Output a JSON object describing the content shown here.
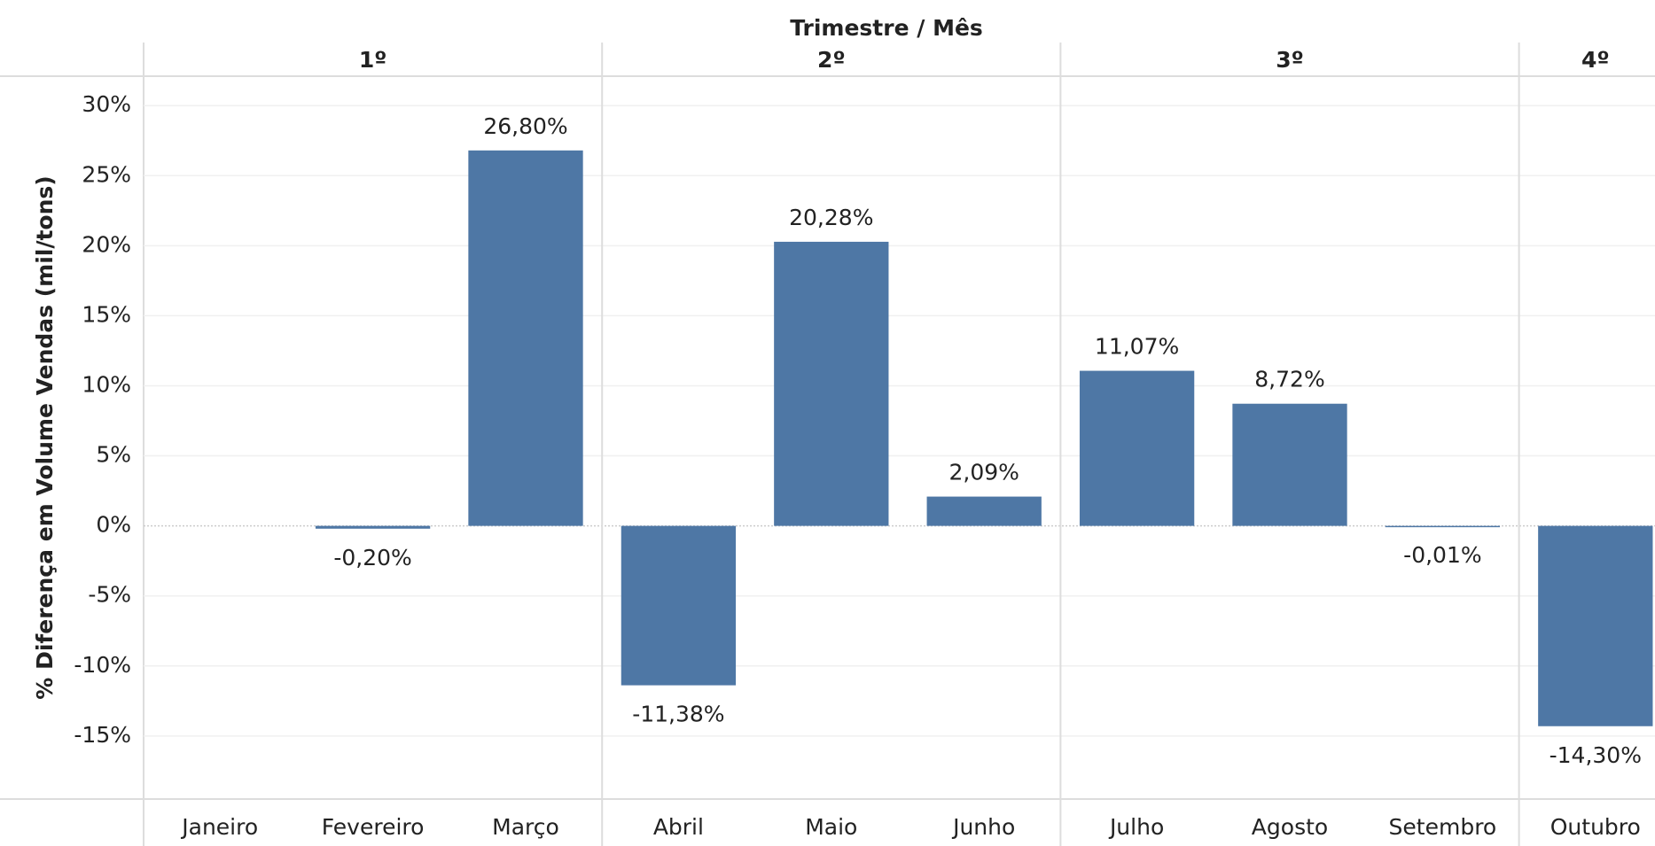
{
  "chart_data": {
    "type": "bar",
    "title": "Trimestre / Mês",
    "ylabel": "% Diferença em Volume Vendas (mil/tons)",
    "groups": [
      {
        "label": "1º",
        "span": 3
      },
      {
        "label": "2º",
        "span": 3
      },
      {
        "label": "3º",
        "span": 3
      },
      {
        "label": "4º",
        "span": 1
      }
    ],
    "categories": [
      "Janeiro",
      "Fevereiro",
      "Março",
      "Abril",
      "Maio",
      "Junho",
      "Julho",
      "Agosto",
      "Setembro",
      "Outubro"
    ],
    "values": [
      null,
      -0.2,
      26.8,
      -11.38,
      20.28,
      2.09,
      11.07,
      8.72,
      -0.01,
      -14.3
    ],
    "value_labels": [
      null,
      "-0,20%",
      "26,80%",
      "-11,38%",
      "20,28%",
      "2,09%",
      "11,07%",
      "8,72%",
      "-0,01%",
      "-14,30%"
    ],
    "color": "#4e77a5",
    "ylim": [
      -19.5,
      32.1
    ],
    "yticks": [
      {
        "value": -15,
        "label": "-15%"
      },
      {
        "value": -10,
        "label": "-10%"
      },
      {
        "value": -5,
        "label": "-5%"
      },
      {
        "value": 0,
        "label": "0%"
      },
      {
        "value": 5,
        "label": "5%"
      },
      {
        "value": 10,
        "label": "10%"
      },
      {
        "value": 15,
        "label": "15%"
      },
      {
        "value": 20,
        "label": "20%"
      },
      {
        "value": 25,
        "label": "25%"
      },
      {
        "value": 30,
        "label": "30%"
      }
    ],
    "grid": true
  }
}
